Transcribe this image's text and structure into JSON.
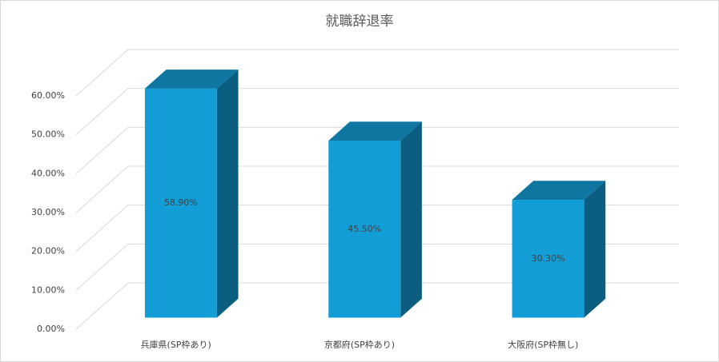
{
  "chart_data": {
    "type": "bar3d",
    "title": "就職辞退率",
    "categories": [
      "兵庫県(SP枠あり)",
      "京都府(SP枠あり)",
      "大阪府(SP枠無し)"
    ],
    "values": [
      58.9,
      45.5,
      30.3
    ],
    "value_labels": [
      "58.90%",
      "45.50%",
      "30.30%"
    ],
    "color": "#139dd6",
    "ylim": [
      0,
      60
    ],
    "yticks": [
      {
        "value": 0,
        "label": "0.00%"
      },
      {
        "value": 10,
        "label": "10.00%"
      },
      {
        "value": 20,
        "label": "20.00%"
      },
      {
        "value": 30,
        "label": "30.00%"
      },
      {
        "value": 40,
        "label": "40.00%"
      },
      {
        "value": 50,
        "label": "50.00%"
      },
      {
        "value": 60,
        "label": "60.00%"
      }
    ],
    "grid": true
  }
}
